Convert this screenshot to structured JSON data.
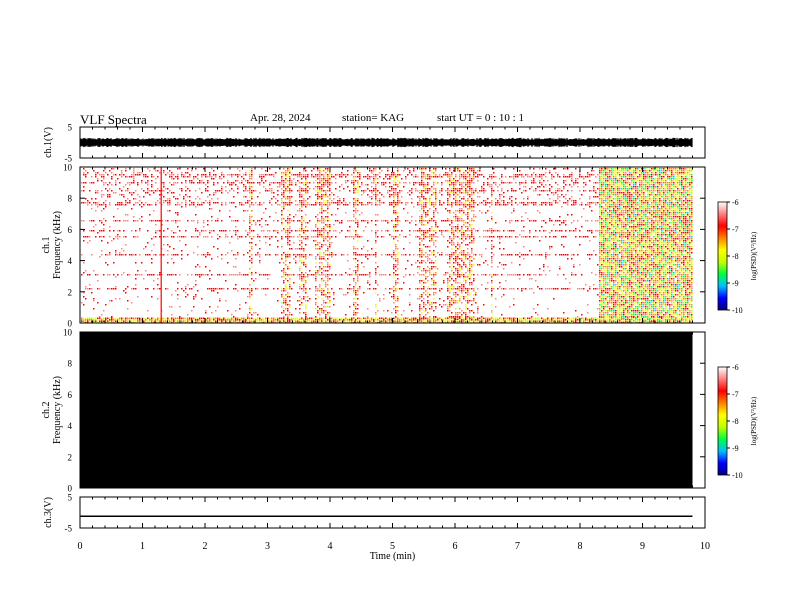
{
  "header": {
    "title": "VLF Spectra",
    "date": "Apr. 28, 2024",
    "station": "station= KAG",
    "start": "start  UT =   0 : 10 : 1"
  },
  "chart_data": [
    {
      "type": "line",
      "panel": "ch1-waveform",
      "ylabel": "ch.1(V)",
      "ylim": [
        -5,
        5
      ],
      "yticks": [
        "5",
        "-5"
      ],
      "xlim": [
        0,
        10
      ],
      "data_extent_min": [
        0,
        9.8
      ],
      "series": [
        {
          "description_values": {
            "baseline": 0,
            "amplitude_approx": 1.5
          }
        }
      ]
    },
    {
      "type": "heatmap",
      "panel": "ch1-spectrogram",
      "ylabel": "ch.1 Frequency (kHz)",
      "ylabel_lines": [
        "ch.1",
        "Frequency (kHz)"
      ],
      "ylim": [
        0,
        10
      ],
      "yticks": [
        "0",
        "2",
        "4",
        "6",
        "8",
        "10"
      ],
      "xlim": [
        0,
        10
      ],
      "activity_bands_min": [
        [
          2.7,
          2.75
        ],
        [
          3.2,
          3.35
        ],
        [
          3.5,
          3.6
        ],
        [
          3.75,
          4.0
        ],
        [
          4.35,
          4.45
        ],
        [
          4.7,
          4.75
        ],
        [
          5.0,
          5.1
        ],
        [
          5.4,
          5.7
        ],
        [
          5.85,
          6.3
        ],
        [
          6.55,
          6.6
        ],
        [
          8.3,
          9.8
        ]
      ],
      "persistent_lines_khz": [
        0.2,
        2.2,
        3.1,
        4.4,
        5.6,
        6.0,
        6.6,
        7.7,
        8.5,
        9.0,
        9.5
      ]
    },
    {
      "type": "heatmap",
      "panel": "ch2-spectrogram",
      "ylabel": "ch.2 Frequency (kHz)",
      "ylabel_lines": [
        "ch.2",
        "Frequency (kHz)"
      ],
      "ylim": [
        0,
        10
      ],
      "yticks": [
        "0",
        "2",
        "4",
        "6",
        "8",
        "10"
      ],
      "xlim": [
        0,
        10
      ],
      "fill": "#000000"
    },
    {
      "type": "line",
      "panel": "ch3-waveform",
      "ylabel": "ch.3(V)",
      "ylim": [
        -5,
        5
      ],
      "yticks": [
        "5",
        "-5"
      ],
      "xlim": [
        0,
        10
      ],
      "series": [
        {
          "x": [
            0,
            9.8
          ],
          "y": [
            -1.2,
            -1.2
          ]
        }
      ]
    }
  ],
  "x_axis": {
    "label": "Time (min)",
    "ticks": [
      "0",
      "1",
      "2",
      "3",
      "4",
      "5",
      "6",
      "7",
      "8",
      "9",
      "10"
    ]
  },
  "colorbar": {
    "label": "log(PSD)(V²/Hz)",
    "ticks": [
      "-6",
      "-7",
      "-8",
      "-9",
      "-10"
    ],
    "range": [
      -10,
      -6
    ],
    "colors": [
      "#000080",
      "#0000ff",
      "#00c0ff",
      "#00ff40",
      "#c0ff00",
      "#ffff00",
      "#ff8000",
      "#ff0000",
      "#ff8080",
      "#ffffff"
    ]
  }
}
